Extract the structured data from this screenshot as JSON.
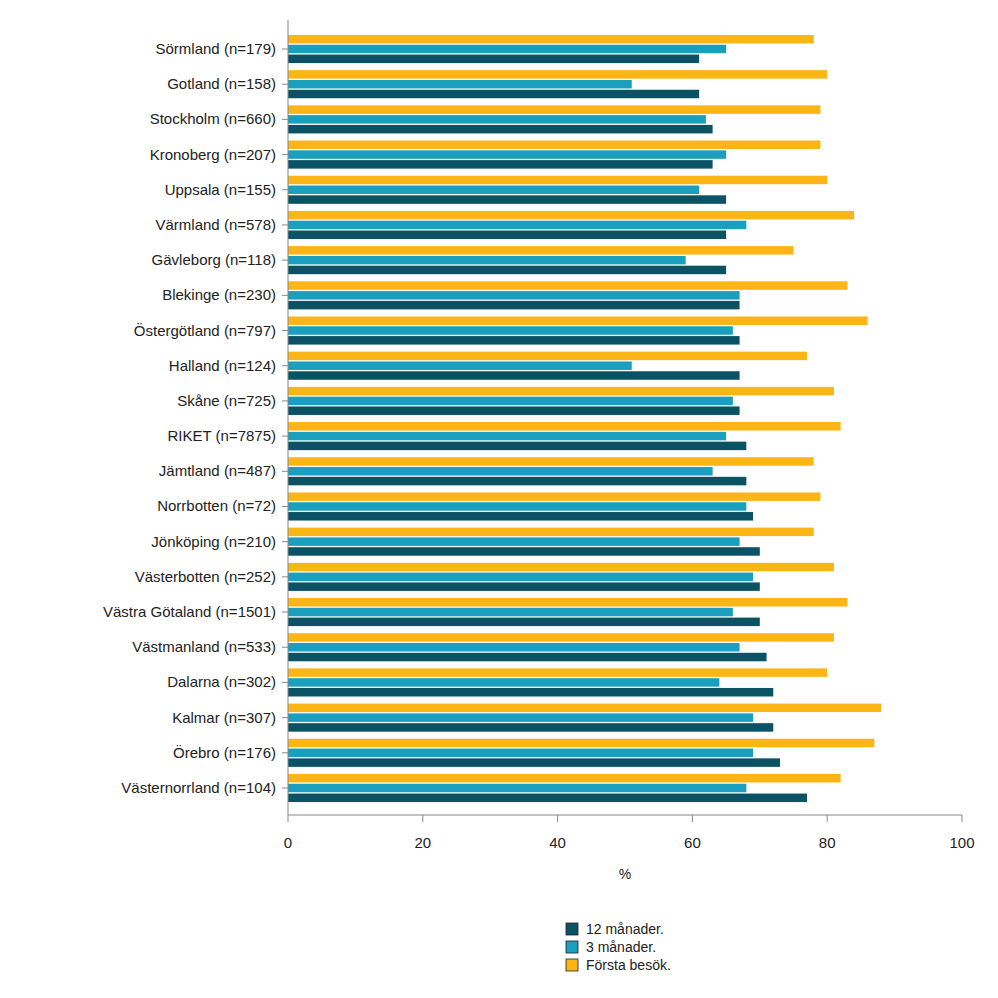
{
  "chart_data": {
    "type": "bar",
    "orientation": "horizontal",
    "x_label": "%",
    "categories": [
      "Sörmland (n=179)",
      "Gotland (n=158)",
      "Stockholm (n=660)",
      "Kronoberg (n=207)",
      "Uppsala (n=155)",
      "Värmland (n=578)",
      "Gävleborg (n=118)",
      "Blekinge (n=230)",
      "Östergötland (n=797)",
      "Halland (n=124)",
      "Skåne (n=725)",
      "RIKET (n=7875)",
      "Jämtland (n=487)",
      "Norrbotten (n=72)",
      "Jönköping (n=210)",
      "Västerbotten (n=252)",
      "Västra Götaland (n=1501)",
      "Västmanland (n=533)",
      "Dalarna (n=302)",
      "Kalmar (n=307)",
      "Örebro (n=176)",
      "Västernorrland (n=104)"
    ],
    "series": [
      {
        "name": "12 månader.",
        "color": "#0a5264",
        "values": [
          61,
          61,
          63,
          63,
          65,
          65,
          65,
          67,
          67,
          67,
          67,
          68,
          68,
          69,
          70,
          70,
          70,
          71,
          72,
          72,
          73,
          77
        ]
      },
      {
        "name": "3 månader.",
        "color": "#1a9fbe",
        "values": [
          65,
          51,
          62,
          65,
          61,
          68,
          59,
          67,
          66,
          51,
          66,
          65,
          63,
          68,
          67,
          69,
          66,
          67,
          64,
          69,
          69,
          68
        ]
      },
      {
        "name": "Första besök.",
        "color": "#fbb516",
        "values": [
          78,
          80,
          79,
          79,
          80,
          84,
          75,
          83,
          86,
          77,
          81,
          82,
          78,
          79,
          78,
          81,
          83,
          81,
          80,
          88,
          87,
          82
        ]
      }
    ],
    "xlim": [
      0,
      100
    ],
    "xticks": [
      0,
      20,
      40,
      60,
      80,
      100
    ],
    "grid": false,
    "legend": "bottom"
  }
}
